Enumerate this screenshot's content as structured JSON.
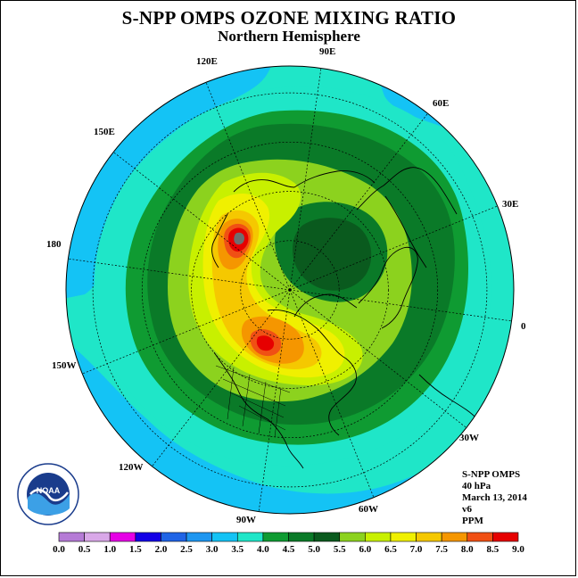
{
  "title": "S-NPP OMPS OZONE MIXING RATIO",
  "subtitle": "Northern Hemisphere",
  "longitude_labels": [
    {
      "key": "90E",
      "text": "90E"
    },
    {
      "key": "60E",
      "text": "60E"
    },
    {
      "key": "30E",
      "text": "30E"
    },
    {
      "key": "0",
      "text": "0"
    },
    {
      "key": "30W",
      "text": "30W"
    },
    {
      "key": "60W",
      "text": "60W"
    },
    {
      "key": "90W",
      "text": "90W"
    },
    {
      "key": "120W",
      "text": "120W"
    },
    {
      "key": "150W",
      "text": "150W"
    },
    {
      "key": "180",
      "text": "180"
    },
    {
      "key": "150E",
      "text": "150E"
    },
    {
      "key": "120E",
      "text": "120E"
    }
  ],
  "info": {
    "instrument": "S-NPP OMPS",
    "level": "40 hPa",
    "date": "March 13, 2014",
    "version": "v6",
    "units": "PPM"
  },
  "logo_text": "NOAA",
  "colorbar": {
    "ticks": [
      "0.0",
      "0.5",
      "1.0",
      "1.5",
      "2.0",
      "2.5",
      "3.0",
      "3.5",
      "4.0",
      "4.5",
      "5.0",
      "5.5",
      "6.0",
      "6.5",
      "7.0",
      "7.5",
      "8.0",
      "8.5",
      "9.0"
    ],
    "colors": [
      "#b57bd6",
      "#d9a8e8",
      "#e600e6",
      "#1400e6",
      "#1f64e6",
      "#1e96f0",
      "#14c3f5",
      "#1fe6c8",
      "#0f9b32",
      "#0a7a28",
      "#0a5a1e",
      "#8cd21e",
      "#c8f000",
      "#f0f000",
      "#f5c800",
      "#f59600",
      "#f05014",
      "#e60000",
      "#a05a32"
    ]
  },
  "map_colors": {
    "ocean_fill": "#1fe6c8",
    "band_3_0": "#14c3f5",
    "band_3_5": "#1fe6c8",
    "band_4_0": "#0f9b32",
    "band_4_5": "#0a7a28",
    "band_5_5": "#8cd21e",
    "band_6_0": "#c8f000",
    "band_6_5": "#f0f000",
    "band_7_0": "#f5c800",
    "band_7_5": "#f59600",
    "band_8_0": "#f05014",
    "band_8_5": "#e60000",
    "band_9_0": "#6e6e6e"
  }
}
